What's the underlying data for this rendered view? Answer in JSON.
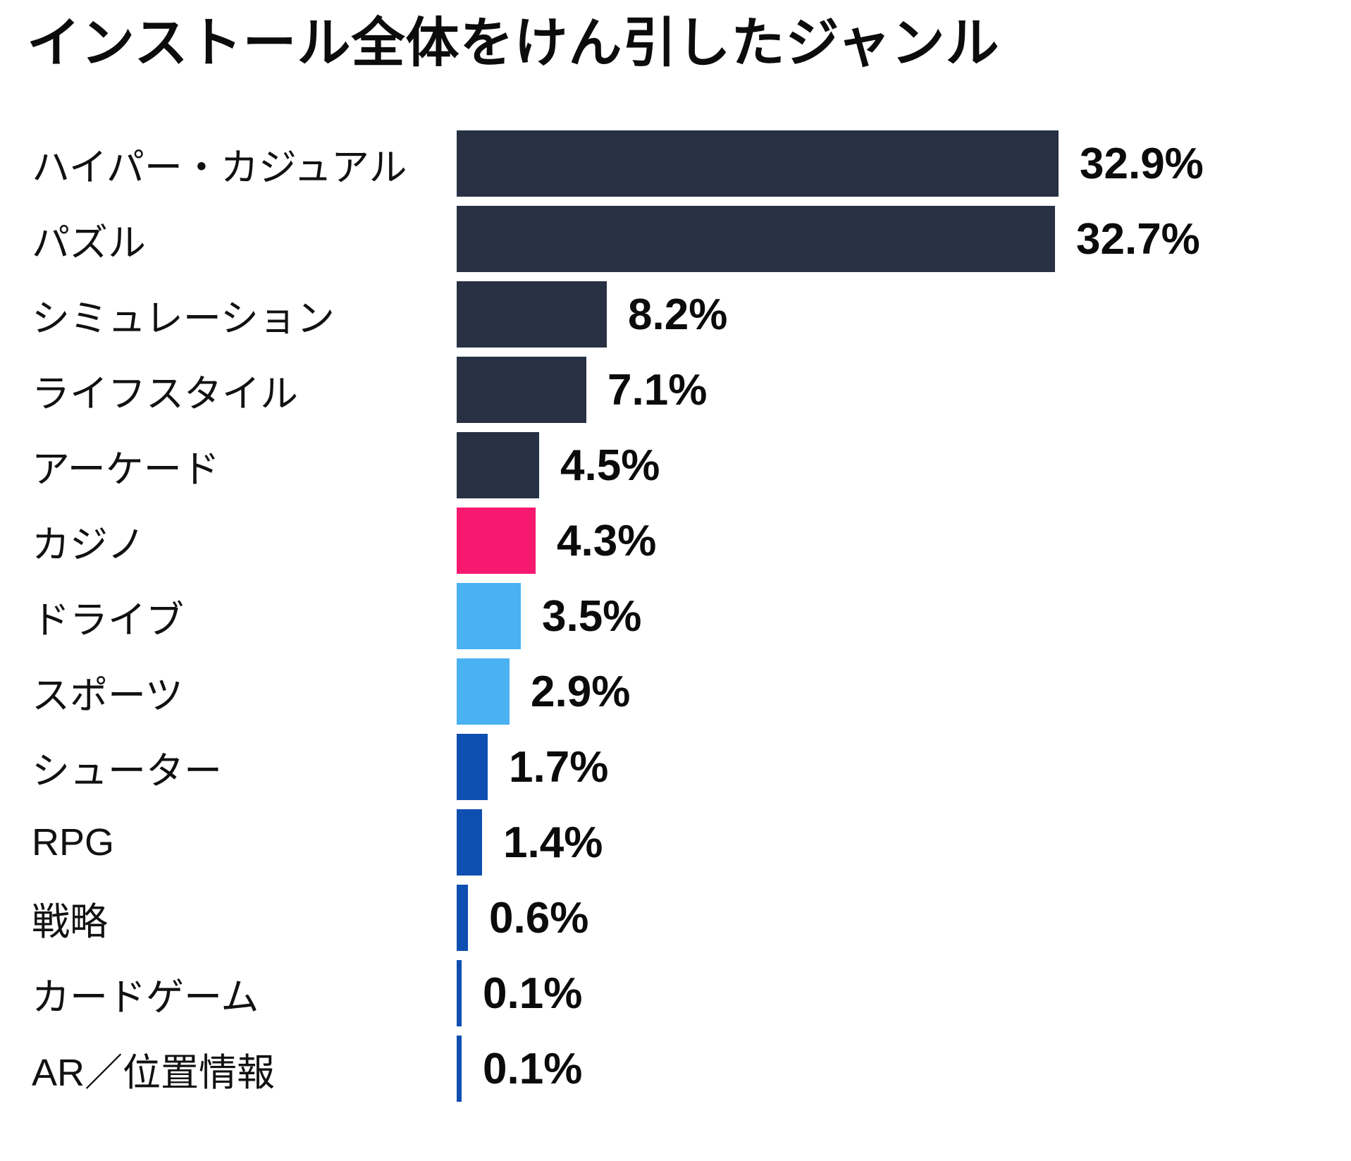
{
  "chart": {
    "title": "インストール全体をけん引したジャンル"
  },
  "chart_data": {
    "type": "bar",
    "orientation": "horizontal",
    "title": "インストール全体をけん引したジャンル",
    "categories": [
      "ハイパー・カジュアル",
      "パズル",
      "シミュレーション",
      "ライフスタイル",
      "アーケード",
      "カジノ",
      "ドライブ",
      "スポーツ",
      "シューター",
      "RPG",
      "戦略",
      "カードゲーム",
      "AR／位置情報"
    ],
    "values": [
      32.9,
      32.7,
      8.2,
      7.1,
      4.5,
      4.3,
      3.5,
      2.9,
      1.7,
      1.4,
      0.6,
      0.1,
      0.1
    ],
    "value_labels": [
      "32.9%",
      "32.7%",
      "8.2%",
      "7.1%",
      "4.5%",
      "4.3%",
      "3.5%",
      "2.9%",
      "1.7%",
      "1.4%",
      "0.6%",
      "0.1%",
      "0.1%"
    ],
    "bar_colors": [
      "#273143",
      "#273143",
      "#273143",
      "#273143",
      "#273143",
      "#f7196f",
      "#4ab1f2",
      "#4ab1f2",
      "#0e4fb1",
      "#0e4fb1",
      "#0e4fb1",
      "#0e4fb1",
      "#0e4fb1"
    ],
    "palette": {
      "navy": "#273143",
      "pink": "#f7196f",
      "light_blue": "#4ab1f2",
      "blue": "#0e4fb1"
    },
    "xlim": [
      0,
      34.5
    ],
    "grid": false,
    "legend": false,
    "value_labels_position": "right-of-bar"
  }
}
